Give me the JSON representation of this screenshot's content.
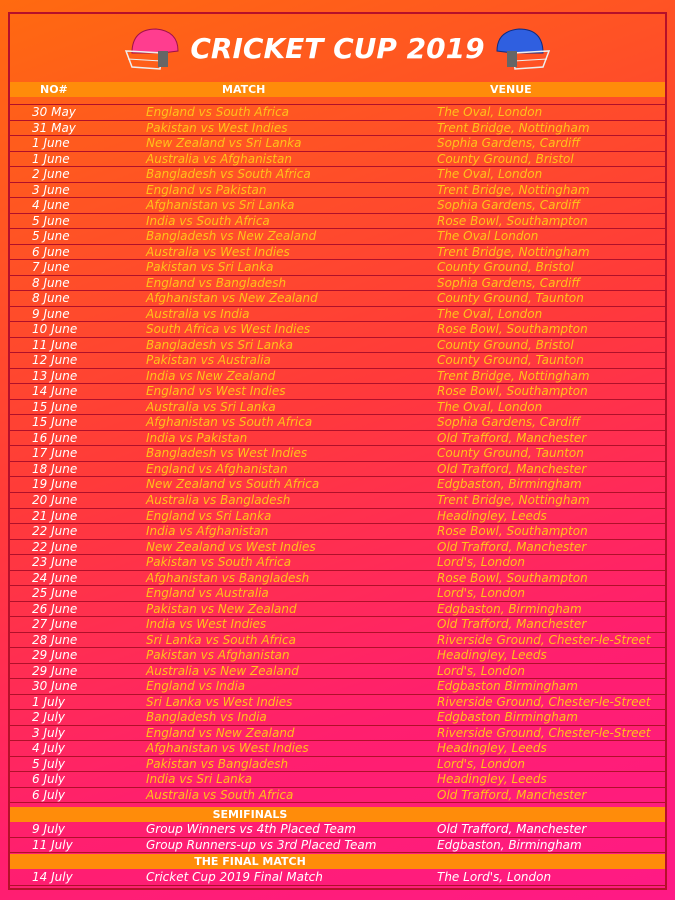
{
  "title": "CRICKET CUP 2019",
  "header": {
    "no": "NO#",
    "match": "MATCH",
    "venue": "VENUE"
  },
  "matches": [
    [
      "30 May",
      "England vs South Africa",
      "The Oval, London"
    ],
    [
      "31 May",
      "Pakistan vs West Indies",
      "Trent Bridge, Nottingham"
    ],
    [
      "1 June",
      "New Zealand vs Sri Lanka",
      "Sophia Gardens, Cardiff"
    ],
    [
      "1 June",
      "Australia vs Afghanistan",
      "County Ground, Bristol"
    ],
    [
      "2 June",
      "Bangladesh vs South Africa",
      "The Oval, London"
    ],
    [
      "3 June",
      "England vs Pakistan",
      "Trent Bridge, Nottingham"
    ],
    [
      "4 June",
      "Afghanistan vs Sri Lanka",
      "Sophia Gardens, Cardiff"
    ],
    [
      "5 June",
      "India vs South Africa",
      "Rose Bowl, Southampton"
    ],
    [
      "5 June",
      "Bangladesh vs New Zealand",
      "The Oval  London"
    ],
    [
      "6 June",
      "Australia vs West Indies",
      "Trent Bridge, Nottingham"
    ],
    [
      "7 June",
      "Pakistan vs Sri Lanka",
      "County Ground, Bristol"
    ],
    [
      "8 June",
      "England vs Bangladesh",
      "Sophia Gardens, Cardiff"
    ],
    [
      "8 June",
      "Afghanistan vs New Zealand",
      "County Ground, Taunton"
    ],
    [
      "9 June",
      "Australia vs India",
      "The Oval, London"
    ],
    [
      "10 June",
      "South Africa vs West Indies",
      "Rose Bowl, Southampton"
    ],
    [
      "11 June",
      "Bangladesh vs Sri Lanka",
      "County Ground, Bristol"
    ],
    [
      "12 June",
      "Pakistan vs Australia",
      "County Ground, Taunton"
    ],
    [
      "13 June",
      "India vs New Zealand",
      "Trent Bridge, Nottingham"
    ],
    [
      "14 June",
      "England vs West Indies",
      "Rose Bowl, Southampton"
    ],
    [
      "15 June",
      "Australia vs Sri Lanka",
      "The Oval, London"
    ],
    [
      "15 June",
      "Afghanistan vs South Africa",
      "Sophia Gardens, Cardiff"
    ],
    [
      "16 June",
      "India vs Pakistan",
      "Old Trafford, Manchester"
    ],
    [
      "17 June",
      "Bangladesh vs West Indies",
      "County Ground, Taunton"
    ],
    [
      "18 June",
      "England vs Afghanistan",
      "Old Trafford, Manchester"
    ],
    [
      "19 June",
      "New Zealand vs South Africa",
      "Edgbaston, Birmingham"
    ],
    [
      "20 June",
      "Australia vs Bangladesh",
      "Trent Bridge, Nottingham"
    ],
    [
      "21 June",
      "England vs Sri Lanka",
      "Headingley, Leeds"
    ],
    [
      "22 June",
      "India vs Afghanistan",
      "Rose Bowl, Southampton"
    ],
    [
      "22 June",
      "New Zealand vs West Indies",
      "Old Trafford, Manchester"
    ],
    [
      "23 June",
      "Pakistan vs South Africa",
      "Lord's, London"
    ],
    [
      "24 June",
      "Afghanistan vs Bangladesh",
      "Rose Bowl, Southampton"
    ],
    [
      "25 June",
      "England vs Australia",
      "Lord's, London"
    ],
    [
      "26 June",
      "Pakistan vs New Zealand",
      "Edgbaston, Birmingham"
    ],
    [
      "27 June",
      "India vs West Indies",
      "Old Trafford, Manchester"
    ],
    [
      "28 June",
      "Sri Lanka vs South Africa",
      "Riverside Ground, Chester-le-Street"
    ],
    [
      "29 June",
      "Pakistan vs Afghanistan",
      "Headingley, Leeds"
    ],
    [
      "29 June",
      "Australia vs New Zealand",
      "Lord's, London"
    ],
    [
      "30 June",
      "England vs India",
      "Edgbaston Birmingham"
    ],
    [
      "1 July",
      "Sri Lanka vs West Indies",
      "Riverside Ground, Chester-le-Street"
    ],
    [
      "2 July",
      "Bangladesh vs India",
      "Edgbaston  Birmingham"
    ],
    [
      "3 July",
      "England vs New Zealand",
      "Riverside Ground, Chester-le-Street"
    ],
    [
      "4 July",
      "Afghanistan vs West Indies",
      "Headingley, Leeds"
    ],
    [
      "5 July",
      "Pakistan vs Bangladesh",
      "Lord's, London"
    ],
    [
      "6 July",
      "India vs Sri Lanka",
      "Headingley, Leeds"
    ],
    [
      "6 July",
      "Australia vs South Africa",
      "Old Trafford, Manchester"
    ]
  ],
  "semifinals": {
    "label": "SEMIFINALS",
    "rows": [
      [
        "9 July",
        "Group Winners vs 4th Placed Team",
        "Old Trafford, Manchester"
      ],
      [
        "11 July",
        "Group Runners-up vs 3rd Placed Team",
        "Edgbaston, Birmingham"
      ]
    ]
  },
  "final": {
    "label": "THE FINAL MATCH",
    "rows": [
      [
        "14 July",
        "Cricket Cup 2019 Final Match",
        "The Lord's, London"
      ]
    ]
  },
  "colors": {
    "helmet_left": "#ff3d8f",
    "helmet_right": "#2f5fe0",
    "header_bar": "#ff8c0a",
    "match_text": "#ffc21a"
  }
}
